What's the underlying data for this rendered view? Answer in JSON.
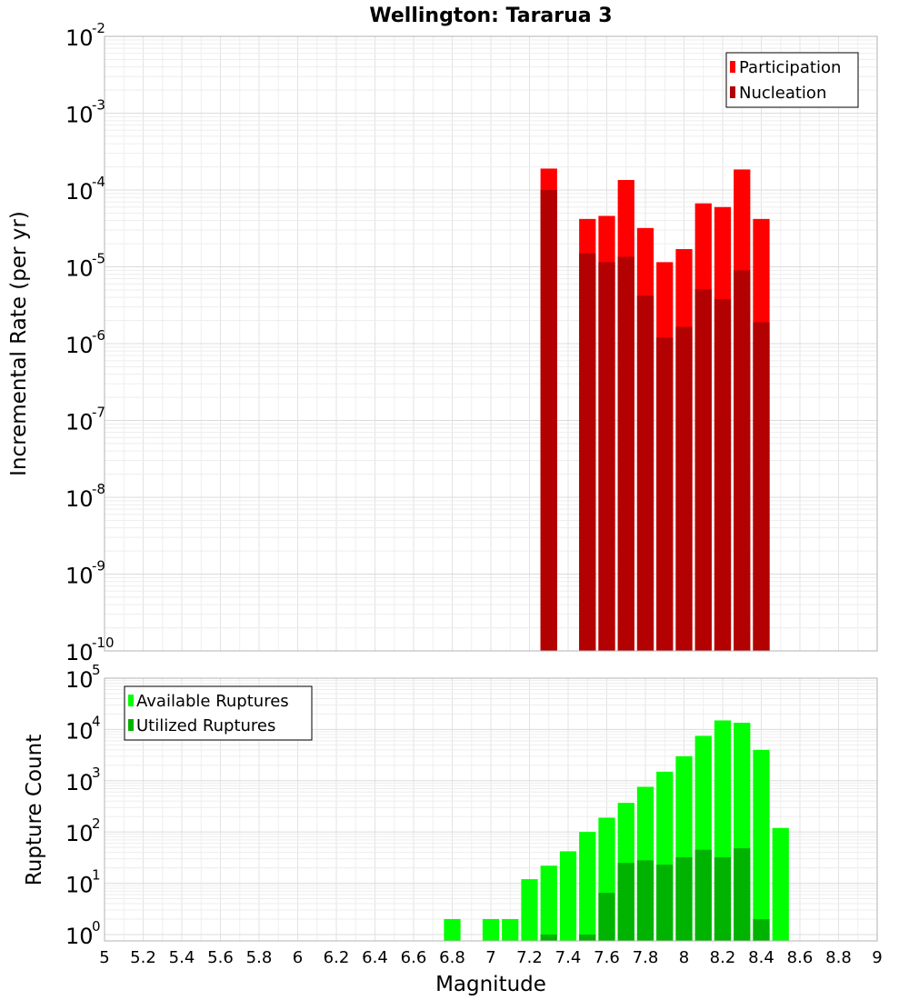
{
  "chart_data": [
    {
      "type": "bar",
      "title": "Wellington: Tararua 3",
      "xlabel": "",
      "ylabel": "Incremental Rate (per yr)",
      "yscale": "log",
      "ylim": [
        1e-10,
        0.01
      ],
      "xlim": [
        5,
        9
      ],
      "grid": true,
      "legend_position": "top-right",
      "x": [
        7.3,
        7.5,
        7.6,
        7.7,
        7.8,
        7.9,
        8.0,
        8.1,
        8.2,
        8.3,
        8.4
      ],
      "series": [
        {
          "name": "Participation",
          "color": "#ff0000",
          "values": [
            0.00019,
            4.2e-05,
            4.6e-05,
            0.000135,
            3.2e-05,
            1.15e-05,
            1.7e-05,
            6.7e-05,
            6e-05,
            0.000185,
            4.2e-05
          ]
        },
        {
          "name": "Nucleation",
          "color": "#b30000",
          "values": [
            0.0001,
            1.5e-05,
            1.15e-05,
            1.35e-05,
            4.2e-06,
            1.2e-06,
            1.65e-06,
            5.1e-06,
            3.8e-06,
            9e-06,
            1.9e-06
          ]
        }
      ]
    },
    {
      "type": "bar",
      "title": "",
      "xlabel": "Magnitude",
      "ylabel": "Rupture Count",
      "yscale": "log",
      "ylim": [
        0.75,
        100000.0
      ],
      "xlim": [
        5,
        9
      ],
      "grid": true,
      "legend_position": "top-left",
      "x": [
        6.8,
        7.0,
        7.1,
        7.2,
        7.3,
        7.4,
        7.5,
        7.6,
        7.7,
        7.8,
        7.9,
        8.0,
        8.1,
        8.2,
        8.3,
        8.4,
        8.5
      ],
      "series": [
        {
          "name": "Available Ruptures",
          "color": "#00ff00",
          "values": [
            2,
            2,
            2,
            12,
            22,
            42,
            100,
            190,
            370,
            760,
            1500,
            3000,
            7500,
            15000,
            13500,
            4000,
            120
          ]
        },
        {
          "name": "Utilized Ruptures",
          "color": "#00b300",
          "values": [
            0,
            0,
            0,
            0,
            1,
            0,
            1,
            6.5,
            25,
            28,
            23,
            32,
            45,
            32,
            48,
            2,
            0
          ]
        }
      ]
    }
  ],
  "x_ticks": [
    "5",
    "5.2",
    "5.4",
    "5.6",
    "5.8",
    "6",
    "6.2",
    "6.4",
    "6.6",
    "6.8",
    "7",
    "7.2",
    "7.4",
    "7.6",
    "7.8",
    "8",
    "8.2",
    "8.4",
    "8.6",
    "8.8",
    "9"
  ],
  "top_y_ticks": [
    {
      "base": "10",
      "exp": "-10"
    },
    {
      "base": "10",
      "exp": "-9"
    },
    {
      "base": "10",
      "exp": "-8"
    },
    {
      "base": "10",
      "exp": "-7"
    },
    {
      "base": "10",
      "exp": "-6"
    },
    {
      "base": "10",
      "exp": "-5"
    },
    {
      "base": "10",
      "exp": "-4"
    },
    {
      "base": "10",
      "exp": "-3"
    },
    {
      "base": "10",
      "exp": "-2"
    }
  ],
  "bottom_y_ticks": [
    {
      "base": "10",
      "exp": "0"
    },
    {
      "base": "10",
      "exp": "1"
    },
    {
      "base": "10",
      "exp": "2"
    },
    {
      "base": "10",
      "exp": "3"
    },
    {
      "base": "10",
      "exp": "4"
    },
    {
      "base": "10",
      "exp": "5"
    }
  ],
  "shared_xlabel": "Magnitude"
}
